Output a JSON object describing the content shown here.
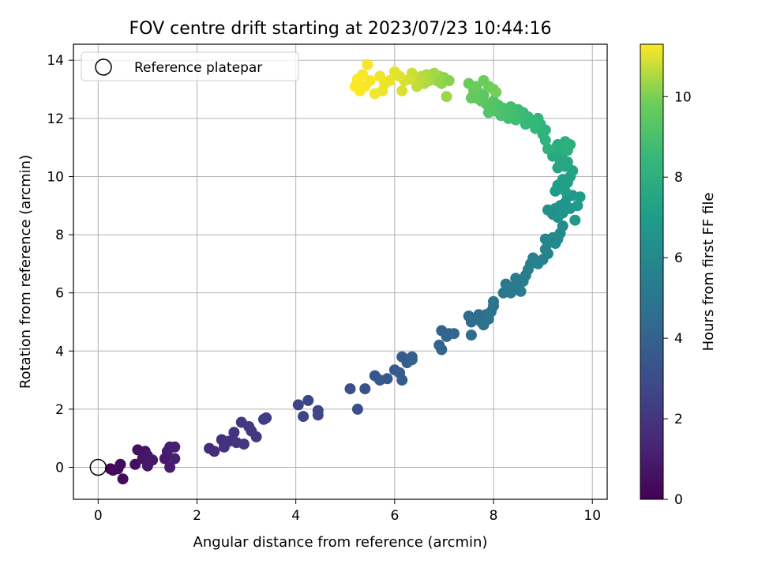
{
  "chart_data": {
    "type": "scatter",
    "title": "FOV centre drift starting at 2023/07/23 10:44:16",
    "xlabel": "Angular distance from reference (arcmin)",
    "ylabel": "Rotation from reference (arcmin)",
    "xlim": [
      -0.5,
      10.3
    ],
    "ylim": [
      -1.1,
      14.55
    ],
    "xticks": [
      0,
      2,
      4,
      6,
      8,
      10
    ],
    "yticks": [
      0,
      2,
      4,
      6,
      8,
      10,
      12,
      14
    ],
    "grid": true,
    "legend": {
      "position": "top-left",
      "label": "Reference platepar"
    },
    "reference_point": {
      "x": 0,
      "y": 0
    },
    "colorbar": {
      "label": "Hours from first FF file",
      "range": [
        0,
        11.3
      ],
      "ticks": [
        0,
        2,
        4,
        6,
        8,
        10
      ],
      "colormap": "viridis"
    },
    "series": [
      {
        "points": [
          [
            0.25,
            -0.05,
            0.1
          ],
          [
            0.3,
            -0.1,
            0.2
          ],
          [
            0.4,
            -0.05,
            0.3
          ],
          [
            0.45,
            0.1,
            0.35
          ],
          [
            0.5,
            -0.4,
            0.4
          ],
          [
            0.75,
            0.1,
            0.5
          ],
          [
            0.8,
            0.6,
            0.55
          ],
          [
            0.9,
            0.3,
            0.6
          ],
          [
            0.95,
            0.55,
            0.7
          ],
          [
            1.0,
            0.05,
            0.75
          ],
          [
            1.0,
            0.4,
            0.8
          ],
          [
            1.1,
            0.25,
            0.85
          ],
          [
            1.35,
            0.3,
            0.9
          ],
          [
            1.4,
            0.55,
            0.95
          ],
          [
            1.45,
            0.0,
            1.0
          ],
          [
            1.45,
            0.7,
            1.05
          ],
          [
            1.55,
            0.7,
            1.1
          ],
          [
            1.55,
            0.3,
            1.15
          ],
          [
            2.25,
            0.65,
            1.6
          ],
          [
            2.35,
            0.55,
            1.65
          ],
          [
            2.5,
            0.95,
            1.75
          ],
          [
            2.55,
            0.7,
            1.8
          ],
          [
            2.65,
            0.9,
            1.85
          ],
          [
            2.75,
            1.2,
            1.9
          ],
          [
            2.8,
            0.85,
            1.95
          ],
          [
            2.9,
            1.55,
            2.0
          ],
          [
            2.95,
            0.8,
            2.05
          ],
          [
            3.05,
            1.4,
            2.1
          ],
          [
            3.1,
            1.25,
            2.15
          ],
          [
            3.2,
            1.05,
            2.2
          ],
          [
            3.35,
            1.65,
            2.25
          ],
          [
            3.4,
            1.7,
            2.3
          ],
          [
            4.05,
            2.15,
            2.6
          ],
          [
            4.15,
            1.75,
            2.65
          ],
          [
            4.25,
            2.3,
            2.7
          ],
          [
            4.45,
            1.95,
            2.75
          ],
          [
            4.45,
            1.8,
            2.8
          ],
          [
            5.1,
            2.7,
            3.1
          ],
          [
            5.25,
            2.0,
            3.15
          ],
          [
            5.4,
            2.7,
            3.2
          ],
          [
            5.6,
            3.15,
            3.4
          ],
          [
            5.7,
            3.0,
            3.45
          ],
          [
            5.85,
            3.05,
            3.5
          ],
          [
            6.0,
            3.35,
            3.6
          ],
          [
            6.1,
            3.25,
            3.65
          ],
          [
            6.15,
            3.0,
            3.7
          ],
          [
            6.15,
            3.8,
            3.75
          ],
          [
            6.25,
            3.6,
            3.8
          ],
          [
            6.35,
            3.8,
            3.85
          ],
          [
            6.35,
            3.7,
            3.9
          ],
          [
            6.9,
            4.2,
            4.0
          ],
          [
            6.95,
            4.05,
            4.05
          ],
          [
            6.95,
            4.7,
            4.1
          ],
          [
            7.05,
            4.5,
            4.15
          ],
          [
            7.1,
            4.6,
            4.2
          ],
          [
            7.2,
            4.6,
            4.25
          ],
          [
            7.5,
            5.2,
            4.4
          ],
          [
            7.55,
            5.0,
            4.45
          ],
          [
            7.55,
            4.55,
            4.5
          ],
          [
            7.6,
            5.1,
            4.55
          ],
          [
            7.7,
            5.25,
            4.6
          ],
          [
            7.75,
            5.0,
            4.65
          ],
          [
            7.8,
            4.9,
            4.7
          ],
          [
            7.85,
            5.25,
            4.75
          ],
          [
            7.9,
            5.1,
            4.8
          ],
          [
            7.95,
            5.35,
            4.85
          ],
          [
            8.0,
            5.55,
            4.9
          ],
          [
            8.0,
            5.7,
            4.95
          ],
          [
            8.2,
            6.0,
            5.0
          ],
          [
            8.25,
            6.3,
            5.05
          ],
          [
            8.3,
            6.1,
            5.1
          ],
          [
            8.35,
            6.0,
            5.15
          ],
          [
            8.4,
            6.2,
            5.2
          ],
          [
            8.45,
            6.5,
            5.25
          ],
          [
            8.5,
            6.3,
            5.3
          ],
          [
            8.55,
            6.05,
            5.35
          ],
          [
            8.6,
            6.4,
            5.4
          ],
          [
            8.65,
            6.6,
            5.45
          ],
          [
            8.7,
            6.8,
            5.5
          ],
          [
            8.75,
            7.0,
            5.55
          ],
          [
            8.8,
            7.2,
            5.6
          ],
          [
            8.9,
            7.0,
            5.65
          ],
          [
            9.0,
            7.15,
            5.7
          ],
          [
            9.05,
            7.5,
            5.75
          ],
          [
            9.1,
            7.35,
            5.8
          ],
          [
            9.05,
            7.85,
            5.85
          ],
          [
            9.1,
            7.7,
            5.9
          ],
          [
            9.2,
            7.9,
            5.95
          ],
          [
            9.25,
            7.7,
            6.0
          ],
          [
            9.3,
            7.85,
            6.05
          ],
          [
            9.35,
            8.05,
            6.1
          ],
          [
            9.4,
            8.3,
            6.15
          ],
          [
            9.1,
            8.85,
            6.3
          ],
          [
            9.2,
            8.7,
            6.35
          ],
          [
            9.25,
            8.9,
            6.4
          ],
          [
            9.3,
            8.6,
            6.45
          ],
          [
            9.35,
            9.0,
            6.5
          ],
          [
            9.4,
            8.75,
            6.55
          ],
          [
            9.45,
            9.1,
            6.6
          ],
          [
            9.5,
            9.3,
            6.65
          ],
          [
            9.55,
            8.9,
            6.7
          ],
          [
            9.6,
            9.35,
            6.75
          ],
          [
            9.65,
            8.5,
            6.8
          ],
          [
            9.7,
            9.0,
            6.85
          ],
          [
            9.75,
            9.3,
            6.9
          ],
          [
            9.25,
            9.5,
            7.0
          ],
          [
            9.3,
            9.7,
            7.05
          ],
          [
            9.4,
            9.9,
            7.1
          ],
          [
            9.45,
            9.5,
            7.15
          ],
          [
            9.5,
            9.8,
            7.2
          ],
          [
            9.55,
            10.0,
            7.25
          ],
          [
            9.6,
            10.2,
            7.3
          ],
          [
            9.3,
            10.3,
            7.4
          ],
          [
            9.35,
            10.45,
            7.45
          ],
          [
            9.4,
            10.6,
            7.5
          ],
          [
            9.45,
            10.35,
            7.55
          ],
          [
            9.5,
            10.5,
            7.6
          ],
          [
            9.2,
            10.7,
            7.7
          ],
          [
            9.25,
            10.95,
            7.75
          ],
          [
            9.3,
            11.1,
            7.8
          ],
          [
            9.35,
            10.85,
            7.85
          ],
          [
            9.4,
            11.0,
            7.9
          ],
          [
            9.45,
            11.2,
            7.95
          ],
          [
            9.5,
            10.9,
            8.0
          ],
          [
            9.55,
            11.1,
            8.05
          ],
          [
            9.1,
            10.95,
            8.1
          ],
          [
            9.05,
            11.25,
            8.15
          ],
          [
            9.0,
            11.45,
            8.2
          ],
          [
            9.05,
            11.6,
            8.25
          ],
          [
            8.95,
            11.8,
            8.3
          ],
          [
            8.9,
            12.0,
            8.35
          ],
          [
            8.85,
            11.65,
            8.4
          ],
          [
            8.8,
            11.9,
            8.45
          ],
          [
            8.7,
            12.05,
            8.5
          ],
          [
            8.65,
            11.8,
            8.55
          ],
          [
            8.6,
            12.2,
            8.6
          ],
          [
            8.55,
            12.1,
            8.65
          ],
          [
            8.5,
            12.3,
            8.7
          ],
          [
            8.45,
            11.95,
            8.75
          ],
          [
            8.4,
            12.15,
            8.8
          ],
          [
            8.35,
            12.4,
            8.85
          ],
          [
            8.3,
            12.0,
            8.9
          ],
          [
            8.25,
            12.2,
            8.95
          ],
          [
            8.2,
            12.35,
            9.0
          ],
          [
            8.15,
            12.1,
            9.05
          ],
          [
            8.1,
            12.45,
            9.1
          ],
          [
            8.05,
            12.25,
            9.15
          ],
          [
            8.0,
            12.6,
            9.2
          ],
          [
            7.95,
            12.4,
            9.25
          ],
          [
            7.9,
            12.2,
            9.3
          ],
          [
            7.85,
            12.5,
            9.35
          ],
          [
            7.8,
            12.8,
            9.4
          ],
          [
            7.75,
            12.6,
            9.45
          ],
          [
            7.7,
            12.9,
            9.5
          ],
          [
            7.65,
            12.7,
            9.55
          ],
          [
            7.6,
            12.95,
            9.6
          ],
          [
            7.55,
            12.7,
            9.65
          ],
          [
            7.5,
            13.2,
            9.7
          ],
          [
            7.65,
            13.1,
            9.75
          ],
          [
            7.8,
            13.3,
            9.8
          ],
          [
            7.9,
            13.1,
            9.85
          ],
          [
            8.0,
            13.0,
            9.9
          ],
          [
            8.05,
            12.9,
            9.95
          ],
          [
            7.1,
            13.3,
            10.1
          ],
          [
            7.0,
            13.4,
            10.15
          ],
          [
            6.95,
            13.2,
            10.2
          ],
          [
            6.9,
            13.45,
            10.25
          ],
          [
            6.85,
            13.3,
            10.3
          ],
          [
            7.05,
            12.75,
            10.35
          ],
          [
            6.8,
            13.55,
            10.4
          ],
          [
            6.7,
            13.3,
            10.45
          ],
          [
            6.65,
            13.5,
            10.5
          ],
          [
            6.6,
            13.2,
            10.55
          ],
          [
            6.55,
            13.45,
            10.6
          ],
          [
            6.5,
            13.3,
            10.65
          ],
          [
            6.45,
            13.1,
            10.7
          ],
          [
            6.4,
            13.4,
            10.75
          ],
          [
            6.35,
            13.55,
            10.8
          ],
          [
            6.3,
            13.35,
            10.85
          ],
          [
            6.2,
            13.3,
            10.9
          ],
          [
            6.15,
            12.95,
            10.95
          ],
          [
            6.1,
            13.45,
            11.0
          ],
          [
            6.0,
            13.6,
            11.05
          ],
          [
            5.9,
            13.3,
            11.1
          ],
          [
            5.8,
            13.2,
            11.12
          ],
          [
            5.75,
            12.95,
            11.15
          ],
          [
            5.7,
            13.45,
            11.18
          ],
          [
            5.6,
            12.85,
            11.2
          ],
          [
            5.5,
            13.3,
            11.22
          ],
          [
            5.45,
            13.85,
            11.24
          ],
          [
            5.4,
            13.1,
            11.26
          ],
          [
            5.35,
            13.5,
            11.27
          ],
          [
            5.3,
            12.95,
            11.28
          ],
          [
            5.25,
            13.35,
            11.29
          ],
          [
            5.2,
            13.1,
            11.3
          ]
        ]
      }
    ]
  }
}
